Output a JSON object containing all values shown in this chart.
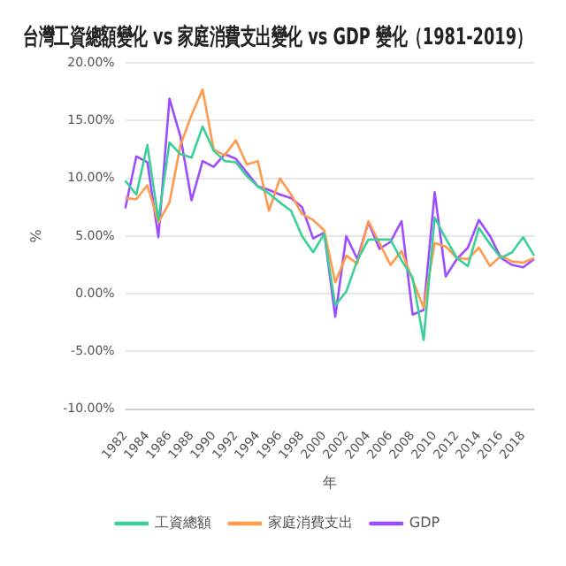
{
  "chart_data": {
    "type": "line",
    "title": "台灣工資總額變化 vs 家庭消費支出變化 vs GDP 變化（1981-2019）",
    "xlabel": "年",
    "ylabel": "%",
    "categories": [
      "1982",
      null,
      "1984",
      null,
      "1986",
      null,
      "1988",
      null,
      "1990",
      null,
      "1992",
      null,
      "1994",
      null,
      "1996",
      null,
      "1998",
      null,
      "2000",
      null,
      "2002",
      null,
      "2004",
      null,
      "2006",
      null,
      "2008",
      null,
      "2010",
      null,
      "2012",
      null,
      "2014",
      null,
      "2016",
      null,
      "2018",
      null
    ],
    "series": [
      {
        "name": "工資總額",
        "color": "#3ccf9a",
        "values": [
          9.8,
          8.6,
          12.9,
          6.4,
          13.1,
          12.1,
          11.8,
          14.5,
          12.4,
          11.5,
          11.4,
          10.2,
          9.3,
          8.7,
          7.9,
          7.2,
          5.0,
          3.6,
          5.2,
          -1.0,
          0.2,
          2.9,
          4.7,
          4.7,
          4.7,
          2.9,
          1.4,
          -4.0,
          6.6,
          4.8,
          3.1,
          2.4,
          5.7,
          4.3,
          3.1,
          3.6,
          4.9,
          3.3
        ]
      },
      {
        "name": "家庭消費支出",
        "color": "#ff9a4d",
        "values": [
          8.3,
          8.2,
          9.4,
          6.2,
          7.9,
          12.9,
          15.5,
          17.7,
          12.5,
          12.0,
          13.3,
          11.2,
          11.5,
          7.2,
          10.0,
          8.6,
          6.9,
          6.4,
          5.5,
          1.0,
          3.3,
          2.6,
          6.3,
          4.4,
          2.5,
          3.7,
          1.2,
          -1.2,
          4.4,
          4.1,
          3.1,
          3.0,
          4.0,
          2.4,
          3.3,
          2.8,
          2.7,
          3.1
        ]
      },
      {
        "name": "GDP",
        "color": "#9b4dff",
        "values": [
          7.4,
          11.9,
          11.4,
          4.9,
          16.9,
          13.6,
          8.1,
          11.5,
          11.0,
          12.1,
          11.7,
          10.5,
          9.3,
          9.0,
          8.6,
          8.3,
          7.5,
          4.8,
          5.3,
          -2.0,
          5.0,
          3.0,
          6.2,
          3.9,
          4.5,
          6.3,
          -1.8,
          -1.4,
          8.8,
          1.5,
          3.0,
          4.0,
          6.4,
          5.0,
          3.1,
          2.5,
          2.3,
          3.0
        ]
      }
    ],
    "ylim": [
      -10,
      20
    ],
    "yticks": [
      {
        "value": -10,
        "label": "-10.00%"
      },
      {
        "value": -5,
        "label": "-5.00%"
      },
      {
        "value": 0,
        "label": "0.00%"
      },
      {
        "value": 5,
        "label": "5.00%"
      },
      {
        "value": 10,
        "label": "10.00%"
      },
      {
        "value": 15,
        "label": "15.00%"
      },
      {
        "value": 20,
        "label": "20.00%"
      }
    ],
    "grid": "y",
    "legend": "bottom",
    "marker": "none",
    "line_style": "solid"
  }
}
